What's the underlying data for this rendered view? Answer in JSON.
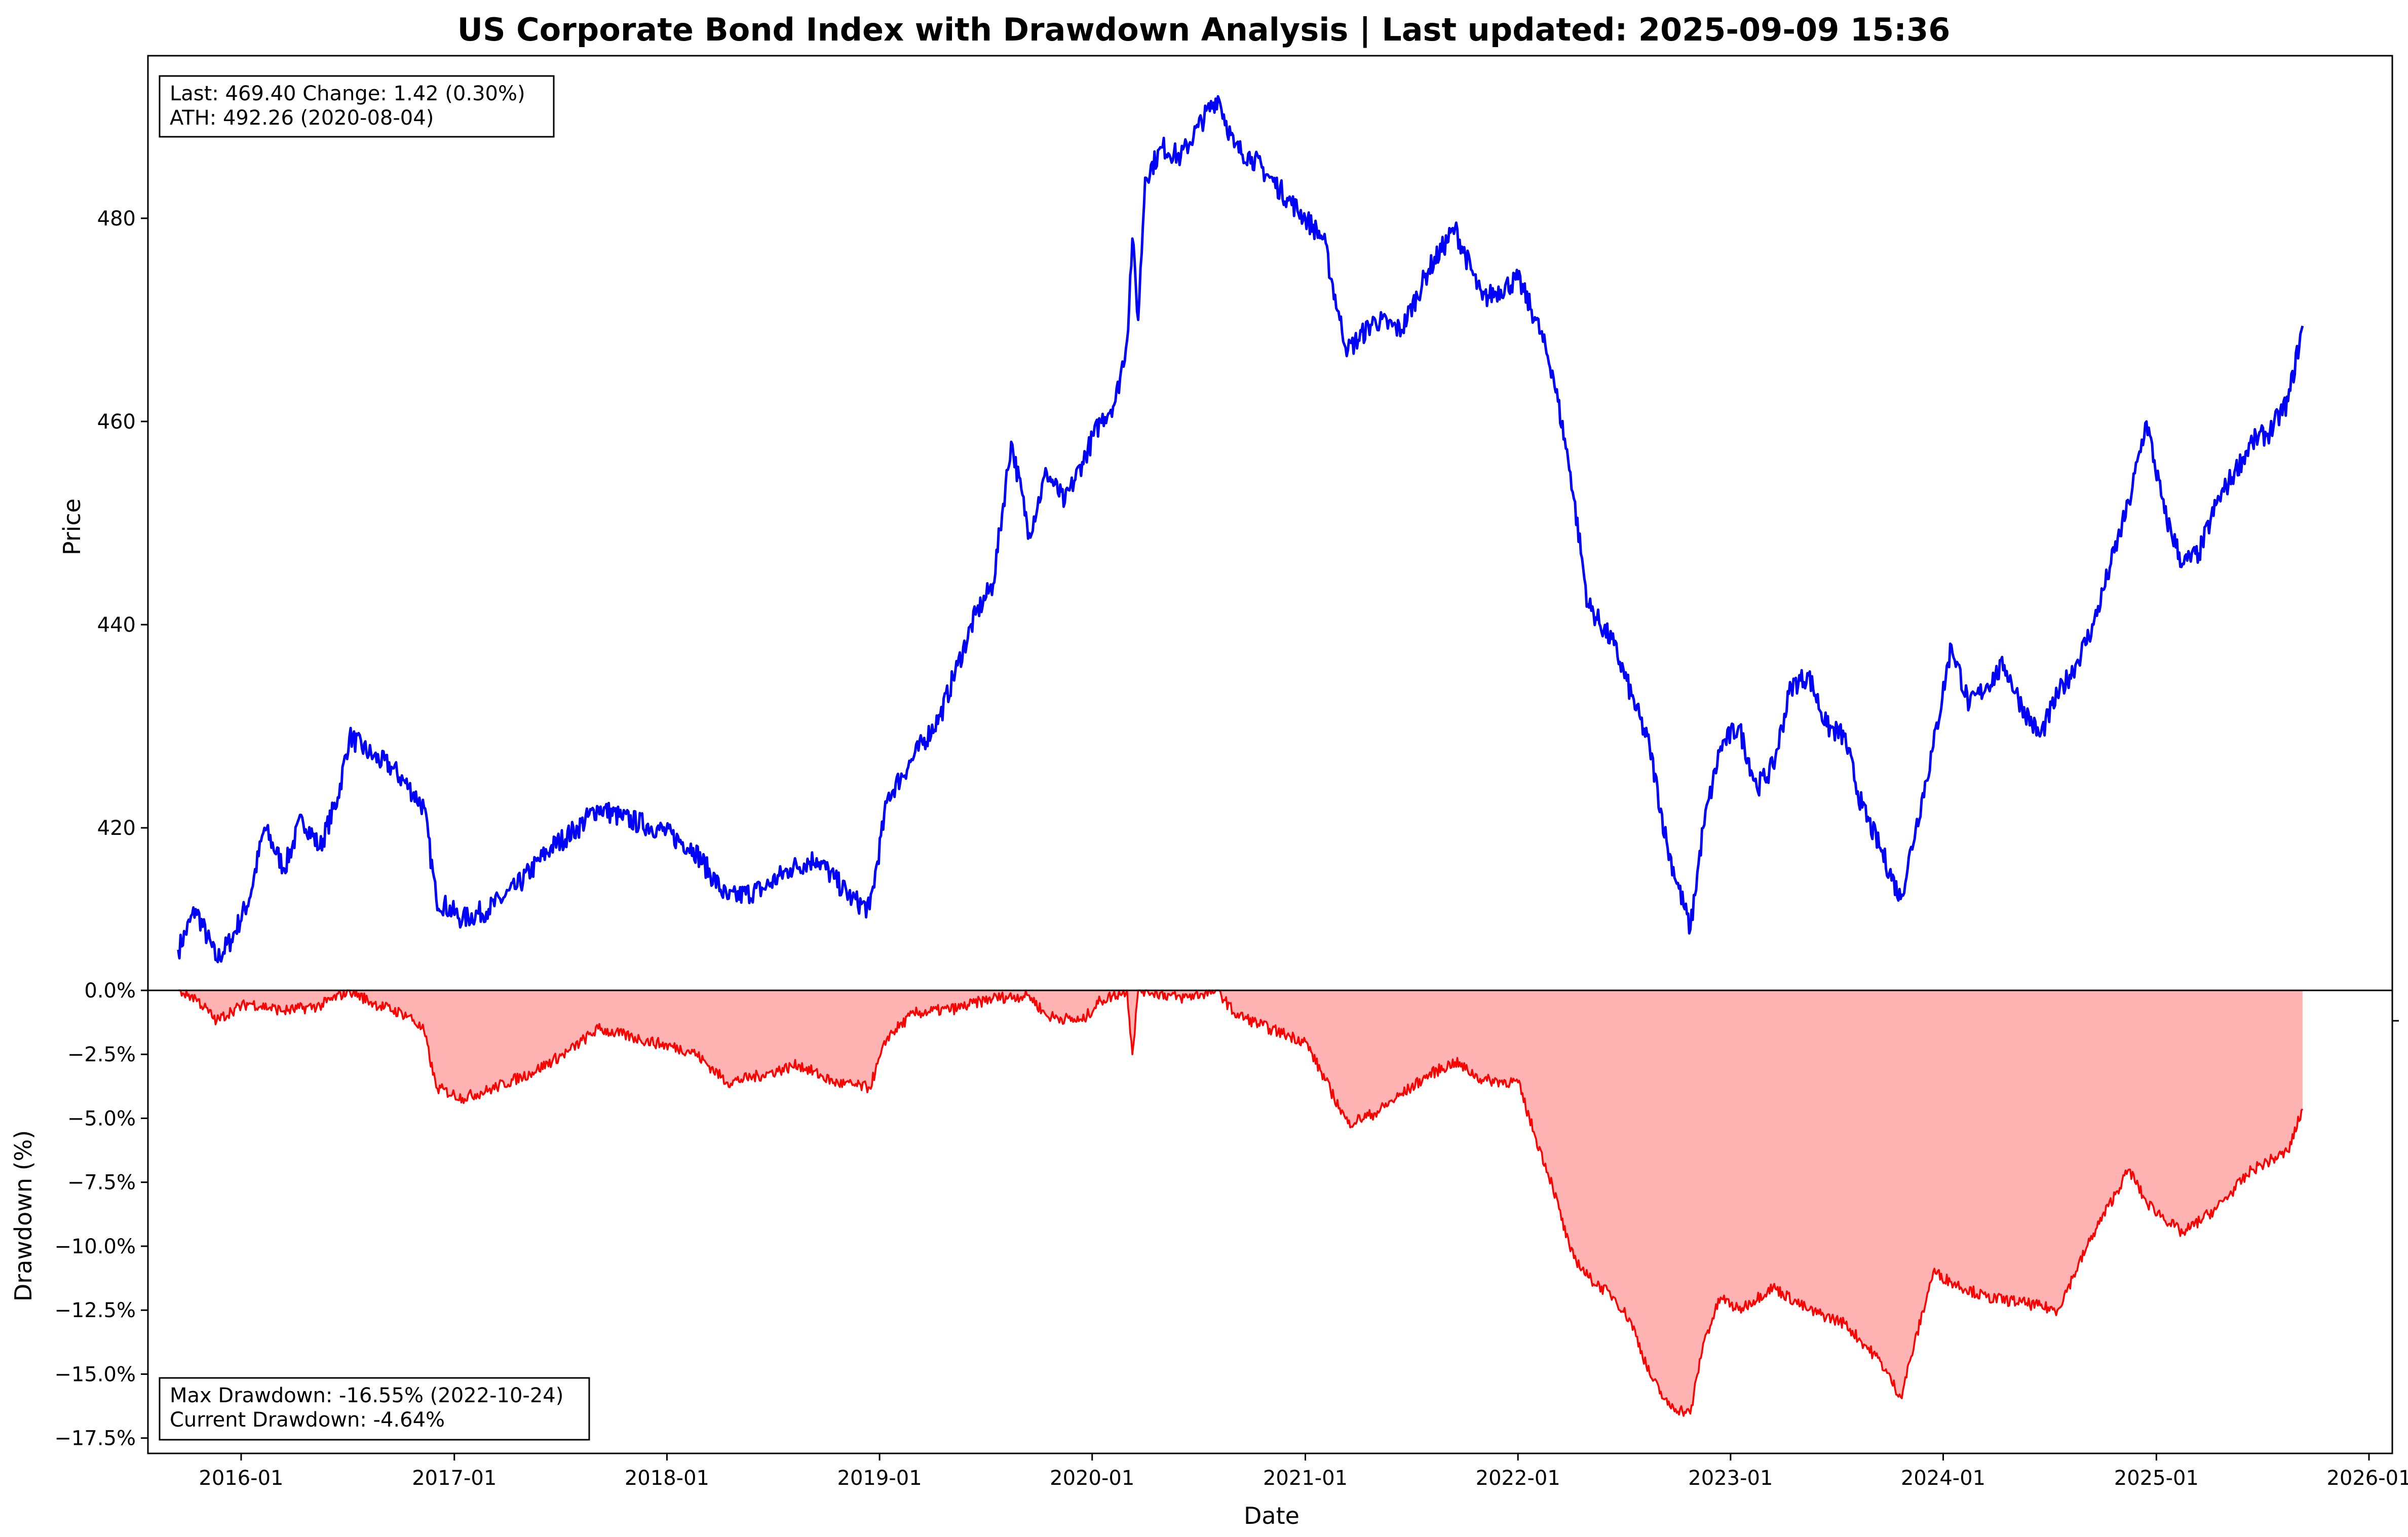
{
  "chart_data": [
    {
      "type": "line",
      "title": "US Corporate Bond Index with Drawdown Analysis | Last updated: 2025-09-09 15:36",
      "ylabel": "Price",
      "ylim": [
        404,
        496
      ],
      "yticks": [
        420,
        440,
        460,
        480
      ],
      "color": "#0000ff",
      "info_box": {
        "line1": "Last: 469.40  Change: 1.42 (0.30%)",
        "line2": "ATH: 492.26 (2020-08-04)"
      },
      "series": [
        {
          "x": [
            "2015-09-15",
            "2015-10-15",
            "2015-11-20",
            "2015-12-15",
            "2016-01-15",
            "2016-02-10",
            "2016-03-15",
            "2016-04-15",
            "2016-05-15",
            "2016-06-15",
            "2016-07-05",
            "2016-08-15",
            "2016-09-15",
            "2016-10-15",
            "2016-11-10",
            "2016-12-01",
            "2017-01-15",
            "2017-03-01",
            "2017-04-15",
            "2017-06-15",
            "2017-08-01",
            "2017-09-05",
            "2017-10-15",
            "2017-12-15",
            "2018-02-15",
            "2018-04-15",
            "2018-06-15",
            "2018-08-01",
            "2018-09-15",
            "2018-10-15",
            "2018-11-15",
            "2018-12-15",
            "2019-01-15",
            "2019-03-01",
            "2019-04-15",
            "2019-05-15",
            "2019-06-15",
            "2019-07-15",
            "2019-08-15",
            "2019-09-15",
            "2019-10-15",
            "2019-11-15",
            "2019-12-15",
            "2020-01-15",
            "2020-02-10",
            "2020-03-01",
            "2020-03-10",
            "2020-03-20",
            "2020-04-01",
            "2020-05-01",
            "2020-06-01",
            "2020-07-01",
            "2020-08-04",
            "2020-09-01",
            "2020-10-01",
            "2020-11-01",
            "2020-12-01",
            "2021-01-01",
            "2021-02-01",
            "2021-03-01",
            "2021-03-15",
            "2021-05-01",
            "2021-06-15",
            "2021-08-01",
            "2021-09-15",
            "2021-11-01",
            "2022-01-01",
            "2022-02-01",
            "2022-03-01",
            "2022-04-01",
            "2022-05-01",
            "2022-06-15",
            "2022-07-15",
            "2022-08-15",
            "2022-09-15",
            "2022-10-24",
            "2022-11-15",
            "2022-12-15",
            "2023-01-15",
            "2023-02-15",
            "2023-03-15",
            "2023-04-15",
            "2023-05-15",
            "2023-06-15",
            "2023-07-15",
            "2023-08-15",
            "2023-09-15",
            "2023-10-20",
            "2023-11-15",
            "2023-12-15",
            "2024-01-15",
            "2024-02-15",
            "2024-03-15",
            "2024-04-15",
            "2024-05-15",
            "2024-06-15",
            "2024-07-15",
            "2024-08-15",
            "2024-09-15",
            "2024-10-15",
            "2024-11-15",
            "2024-12-15",
            "2025-01-15",
            "2025-02-15",
            "2025-03-15",
            "2025-04-15",
            "2025-05-15",
            "2025-06-15",
            "2025-07-15",
            "2025-08-15",
            "2025-09-09"
          ],
          "values": [
            408,
            412,
            407,
            409,
            413,
            420,
            416,
            421,
            418,
            423,
            429,
            427,
            426,
            424,
            422,
            413,
            411,
            412,
            414,
            418,
            420,
            422,
            421,
            420,
            418,
            413,
            414,
            416,
            417,
            415,
            413,
            412,
            423,
            427,
            431,
            436,
            441,
            444,
            458,
            449,
            455,
            452,
            456,
            460,
            462,
            468,
            478,
            470,
            484,
            487,
            486,
            489,
            492,
            487,
            486,
            484,
            482,
            480,
            478,
            470,
            467,
            470,
            469,
            475,
            479,
            472,
            474,
            470,
            465,
            455,
            442,
            438,
            433,
            428,
            418,
            410,
            420,
            428,
            430,
            424,
            426,
            434,
            435,
            430,
            429,
            422,
            418,
            413,
            420,
            428,
            438,
            432,
            434,
            436,
            432,
            429,
            433,
            436,
            440,
            446,
            452,
            460,
            451,
            446,
            447,
            452,
            455,
            458,
            459,
            462,
            469.4
          ]
        }
      ]
    },
    {
      "type": "area",
      "xlabel": "Date",
      "ylabel": "Drawdown (%)",
      "ylim": [
        -18.1,
        0
      ],
      "yticks": [
        0,
        -2.5,
        -5,
        -7.5,
        -10,
        -12.5,
        -15,
        -17.5
      ],
      "ytick_labels": [
        "0.0%",
        "−2.5%",
        "−5.0%",
        "−7.5%",
        "−10.0%",
        "−12.5%",
        "−15.0%",
        "−17.5%"
      ],
      "xticks": [
        "2016-01-01",
        "2017-01-01",
        "2018-01-01",
        "2019-01-01",
        "2020-01-01",
        "2021-01-01",
        "2022-01-01",
        "2023-01-01",
        "2024-01-01",
        "2025-01-01",
        "2026-01-01"
      ],
      "xtick_labels": [
        "2016-01",
        "2017-01",
        "2018-01",
        "2019-01",
        "2020-01",
        "2021-01",
        "2022-01",
        "2023-01",
        "2024-01",
        "2025-01",
        "2026-01"
      ],
      "xlim": [
        "2015-07-25",
        "2026-02-10"
      ],
      "line_color": "#ff0000",
      "fill_color": "#ffb3b3",
      "info_box": {
        "line1": "Max Drawdown: -16.55% (2022-10-24)",
        "line2": "Current Drawdown: -4.64%"
      },
      "series": [
        {
          "x": [
            "2015-09-15",
            "2015-10-15",
            "2015-11-20",
            "2015-12-15",
            "2016-01-15",
            "2016-03-15",
            "2016-05-15",
            "2016-07-05",
            "2016-08-15",
            "2016-10-15",
            "2016-11-10",
            "2016-12-01",
            "2017-01-15",
            "2017-03-01",
            "2017-05-15",
            "2017-07-15",
            "2017-09-05",
            "2017-11-15",
            "2018-02-15",
            "2018-04-15",
            "2018-06-15",
            "2018-08-15",
            "2018-10-15",
            "2018-12-15",
            "2019-01-15",
            "2019-03-01",
            "2019-05-15",
            "2019-07-15",
            "2019-09-15",
            "2019-10-15",
            "2019-12-15",
            "2020-01-15",
            "2020-03-01",
            "2020-03-10",
            "2020-03-20",
            "2020-04-01",
            "2020-06-01",
            "2020-08-04",
            "2020-09-01",
            "2020-11-01",
            "2021-01-01",
            "2021-03-01",
            "2021-03-15",
            "2021-05-01",
            "2021-08-01",
            "2021-09-15",
            "2021-11-01",
            "2022-01-01",
            "2022-02-01",
            "2022-03-01",
            "2022-04-01",
            "2022-05-01",
            "2022-06-15",
            "2022-07-15",
            "2022-08-15",
            "2022-09-15",
            "2022-10-24",
            "2022-11-15",
            "2022-12-15",
            "2023-01-15",
            "2023-03-15",
            "2023-05-15",
            "2023-07-15",
            "2023-09-15",
            "2023-10-20",
            "2023-12-15",
            "2024-01-15",
            "2024-03-15",
            "2024-05-15",
            "2024-07-15",
            "2024-09-15",
            "2024-11-15",
            "2024-12-15",
            "2025-02-15",
            "2025-04-15",
            "2025-06-15",
            "2025-08-15",
            "2025-09-09"
          ],
          "values": [
            0,
            -0.3,
            -1.2,
            -0.8,
            -0.5,
            -0.8,
            -0.6,
            0,
            -0.5,
            -1.0,
            -1.6,
            -3.8,
            -4.2,
            -3.9,
            -3.2,
            -2.4,
            -1.5,
            -1.9,
            -2.4,
            -3.6,
            -3.3,
            -2.9,
            -3.6,
            -3.8,
            -1.8,
            -0.9,
            -0.7,
            -0.3,
            -0.2,
            -1.0,
            -1.2,
            -0.4,
            0,
            -2.5,
            0,
            0,
            -0.3,
            0,
            -0.9,
            -1.5,
            -2.0,
            -4.6,
            -5.2,
            -4.8,
            -3.3,
            -2.8,
            -3.5,
            -3.6,
            -5.8,
            -7.6,
            -10.2,
            -11.2,
            -12.0,
            -13.0,
            -15.0,
            -16.2,
            -16.55,
            -13.8,
            -12.0,
            -12.5,
            -11.6,
            -12.5,
            -13.0,
            -14.5,
            -15.9,
            -11.0,
            -11.4,
            -12.0,
            -12.2,
            -12.5,
            -9.5,
            -7.0,
            -8.3,
            -9.5,
            -8.5,
            -7.0,
            -6.3,
            -4.64
          ]
        }
      ]
    }
  ]
}
